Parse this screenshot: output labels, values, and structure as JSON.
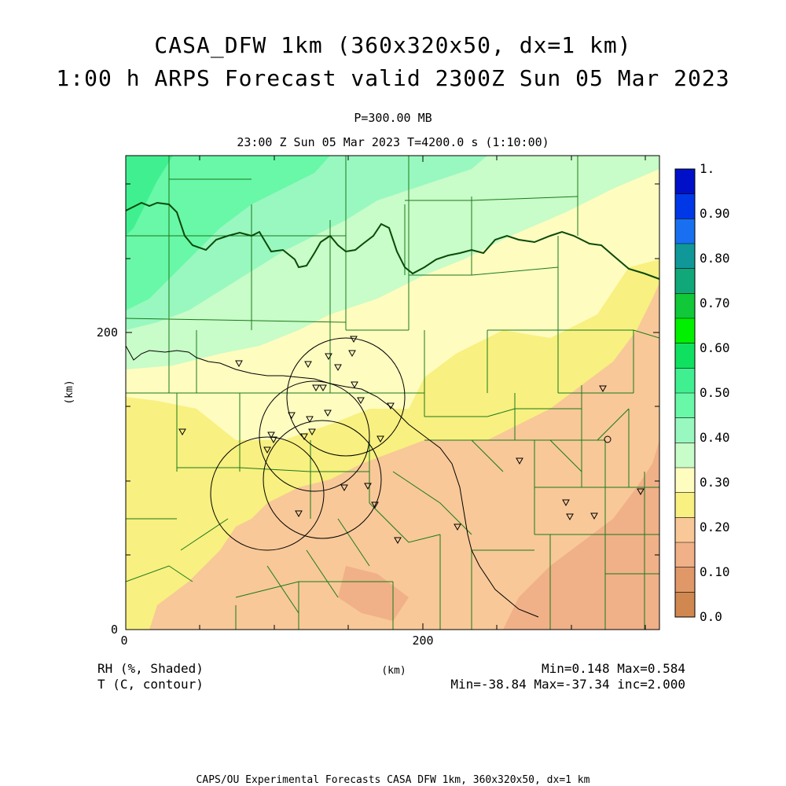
{
  "title": {
    "line1": "CASA_DFW 1km (360x320x50, dx=1 km)",
    "line2": "1:00 h ARPS Forecast valid 2300Z Sun 05 Mar 2023"
  },
  "subtitle": {
    "level": "P=300.00 MB",
    "time": "23:00 Z Sun 05 Mar 2023   T=4200.0 s (1:10:00)"
  },
  "axes": {
    "x_ticks": [
      "0",
      "200"
    ],
    "y_ticks": [
      "0",
      "200"
    ],
    "x_label": "(km)",
    "y_label": "(km)"
  },
  "colorbar": {
    "labels": [
      "1.",
      "0.90",
      "0.80",
      "0.70",
      "0.60",
      "0.50",
      "0.40",
      "0.30",
      "0.20",
      "0.10",
      "0.0"
    ],
    "colors": [
      "#0010c8",
      "#0038e8",
      "#1870f0",
      "#109898",
      "#10a878",
      "#10c838",
      "#00f000",
      "#10e060",
      "#40f090",
      "#68f8a8",
      "#98f8c0",
      "#c8fcc8",
      "#fffcc0",
      "#f8f080",
      "#f8c898",
      "#f0b088",
      "#e09868",
      "#d08850"
    ]
  },
  "labels": {
    "field1": "RH (%, Shaded)",
    "field2": "T (C, contour)",
    "stats1": "Min=0.148 Max=0.584",
    "stats2": "Min=-38.84 Max=-37.34 inc=2.000"
  },
  "footer": "CAPS/OU Experimental Forecasts  CASA DFW 1km, 360x320x50, dx=1 km",
  "colors": {
    "county_lines": "#1a7a1a",
    "contour": "#000000",
    "state_border": "#0a4a0a"
  }
}
